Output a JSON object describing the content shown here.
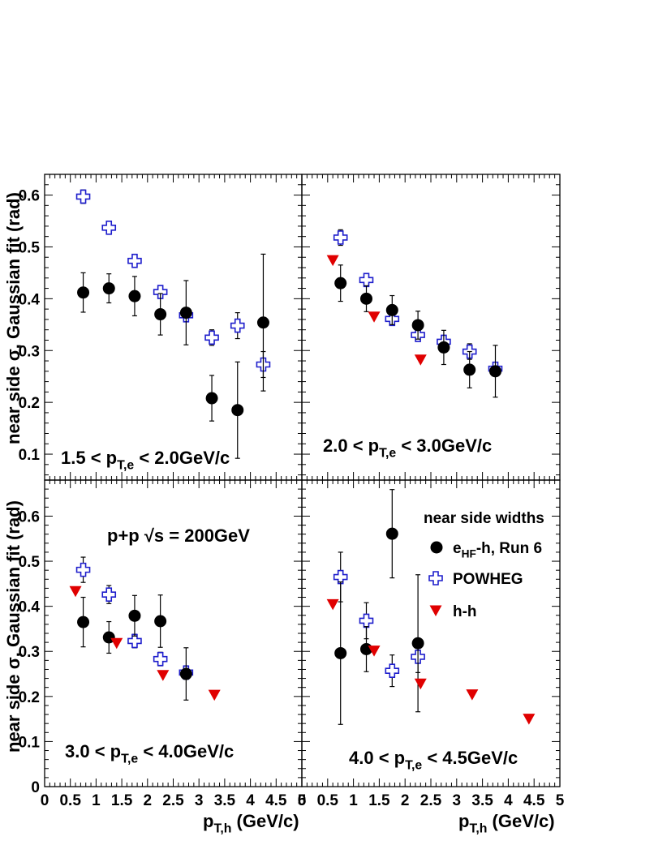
{
  "chart_data": [
    {
      "type": "scatter",
      "panel": "top-left",
      "annotation": "1.5 < p_{T,e} < 2.0GeV/c",
      "ylim": [
        0.05,
        0.64
      ],
      "xlim": [
        0,
        5
      ],
      "series": [
        {
          "name": "e_{HF}-h, Run 6",
          "marker": "circle",
          "x": [
            0.75,
            1.25,
            1.75,
            2.25,
            2.75,
            3.25,
            3.75,
            4.25
          ],
          "y": [
            0.412,
            0.42,
            0.405,
            0.37,
            0.373,
            0.208,
            0.185,
            0.354
          ],
          "err": [
            0.038,
            0.028,
            0.038,
            0.04,
            0.062,
            0.044,
            0.093,
            0.132
          ]
        },
        {
          "name": "POWHEG",
          "marker": "open-cross",
          "x": [
            0.75,
            1.25,
            1.75,
            2.25,
            2.75,
            3.25,
            3.75,
            4.25
          ],
          "y": [
            0.597,
            0.537,
            0.473,
            0.413,
            0.368,
            0.325,
            0.348,
            0.273
          ],
          "err": [
            0.013,
            0.01,
            0.01,
            0.01,
            0.012,
            0.015,
            0.025,
            0.025
          ]
        }
      ]
    },
    {
      "type": "scatter",
      "panel": "top-right",
      "annotation": "2.0 < p_{T,e} < 3.0GeV/c",
      "ylim": [
        0.05,
        0.64
      ],
      "xlim": [
        0,
        5
      ],
      "series": [
        {
          "name": "e_{HF}-h, Run 6",
          "marker": "circle",
          "x": [
            0.75,
            1.25,
            1.75,
            2.25,
            2.75,
            3.25,
            3.75
          ],
          "y": [
            0.43,
            0.4,
            0.378,
            0.349,
            0.306,
            0.263,
            0.26
          ],
          "err": [
            0.035,
            0.025,
            0.028,
            0.027,
            0.033,
            0.035,
            0.05
          ]
        },
        {
          "name": "POWHEG",
          "marker": "open-cross",
          "x": [
            0.75,
            1.25,
            1.75,
            2.25,
            2.75,
            3.25,
            3.75
          ],
          "y": [
            0.518,
            0.436,
            0.361,
            0.33,
            0.317,
            0.298,
            0.265
          ],
          "err": [
            0.015,
            0.012,
            0.01,
            0.01,
            0.012,
            0.015,
            0.01
          ]
        },
        {
          "name": "h-h",
          "marker": "down-triangle",
          "x": [
            0.6,
            1.4,
            2.3
          ],
          "y": [
            0.474,
            0.365,
            0.282
          ],
          "err": [
            0,
            0,
            0
          ]
        }
      ]
    },
    {
      "type": "scatter",
      "panel": "bottom-left",
      "annotation": "3.0 < p_{T,e} < 4.0GeV/c",
      "system_label": "p+p  √s = 200GeV",
      "ylim": [
        0,
        0.68
      ],
      "xlim": [
        0,
        5
      ],
      "series": [
        {
          "name": "e_{HF}-h, Run 6",
          "marker": "circle",
          "x": [
            0.75,
            1.25,
            1.75,
            2.25,
            2.75
          ],
          "y": [
            0.365,
            0.331,
            0.379,
            0.367,
            0.25
          ],
          "err": [
            0.055,
            0.035,
            0.045,
            0.058,
            0.058
          ]
        },
        {
          "name": "POWHEG",
          "marker": "open-cross",
          "x": [
            0.75,
            1.25,
            1.75,
            2.25,
            2.75
          ],
          "y": [
            0.481,
            0.426,
            0.323,
            0.283,
            0.253
          ],
          "err": [
            0.028,
            0.02,
            0.015,
            0.015,
            0.015
          ]
        },
        {
          "name": "h-h",
          "marker": "down-triangle",
          "x": [
            0.6,
            1.4,
            2.3,
            3.3
          ],
          "y": [
            0.433,
            0.318,
            0.247,
            0.203
          ],
          "err": [
            0,
            0,
            0,
            0
          ]
        }
      ]
    },
    {
      "type": "scatter",
      "panel": "bottom-right",
      "annotation": "4.0 < p_{T,e} < 4.5GeV/c",
      "ylim": [
        0,
        0.68
      ],
      "xlim": [
        0,
        5
      ],
      "legend": {
        "title": "near side widths",
        "entries": [
          "e_{HF}-h, Run 6",
          "POWHEG",
          "h-h"
        ]
      },
      "series": [
        {
          "name": "e_{HF}-h, Run 6",
          "marker": "circle",
          "x": [
            0.75,
            1.25,
            1.75,
            2.25
          ],
          "y": [
            0.296,
            0.305,
            0.561,
            0.318
          ],
          "err": [
            0.158,
            0.05,
            0.098,
            0.152
          ]
        },
        {
          "name": "POWHEG",
          "marker": "open-cross",
          "x": [
            0.75,
            1.25,
            1.75,
            2.25
          ],
          "y": [
            0.465,
            0.368,
            0.257,
            0.288
          ],
          "err": [
            0.055,
            0.04,
            0.035,
            0.035
          ]
        },
        {
          "name": "h-h",
          "marker": "down-triangle",
          "x": [
            0.6,
            1.4,
            2.3,
            3.3,
            4.4
          ],
          "y": [
            0.404,
            0.301,
            0.228,
            0.204,
            0.15
          ],
          "err": [
            0,
            0,
            0,
            0,
            0
          ]
        }
      ]
    }
  ],
  "axes": {
    "ylabel": "near side σ, Gaussian fit (rad)",
    "xlabel": "p_{T,h} (GeV/c)",
    "x_ticks": [
      "0",
      "0.5",
      "1",
      "1.5",
      "2",
      "2.5",
      "3",
      "3.5",
      "4",
      "4.5",
      "5"
    ],
    "y_ticks_top": [
      "0.1",
      "0.2",
      "0.3",
      "0.4",
      "0.5",
      "0.6"
    ],
    "y_ticks_bottom": [
      "0",
      "0.1",
      "0.2",
      "0.3",
      "0.4",
      "0.5",
      "0.6"
    ]
  },
  "colors": {
    "eHF": "#000000",
    "powheg": "#1e1ecc",
    "hh": "#e00000"
  }
}
